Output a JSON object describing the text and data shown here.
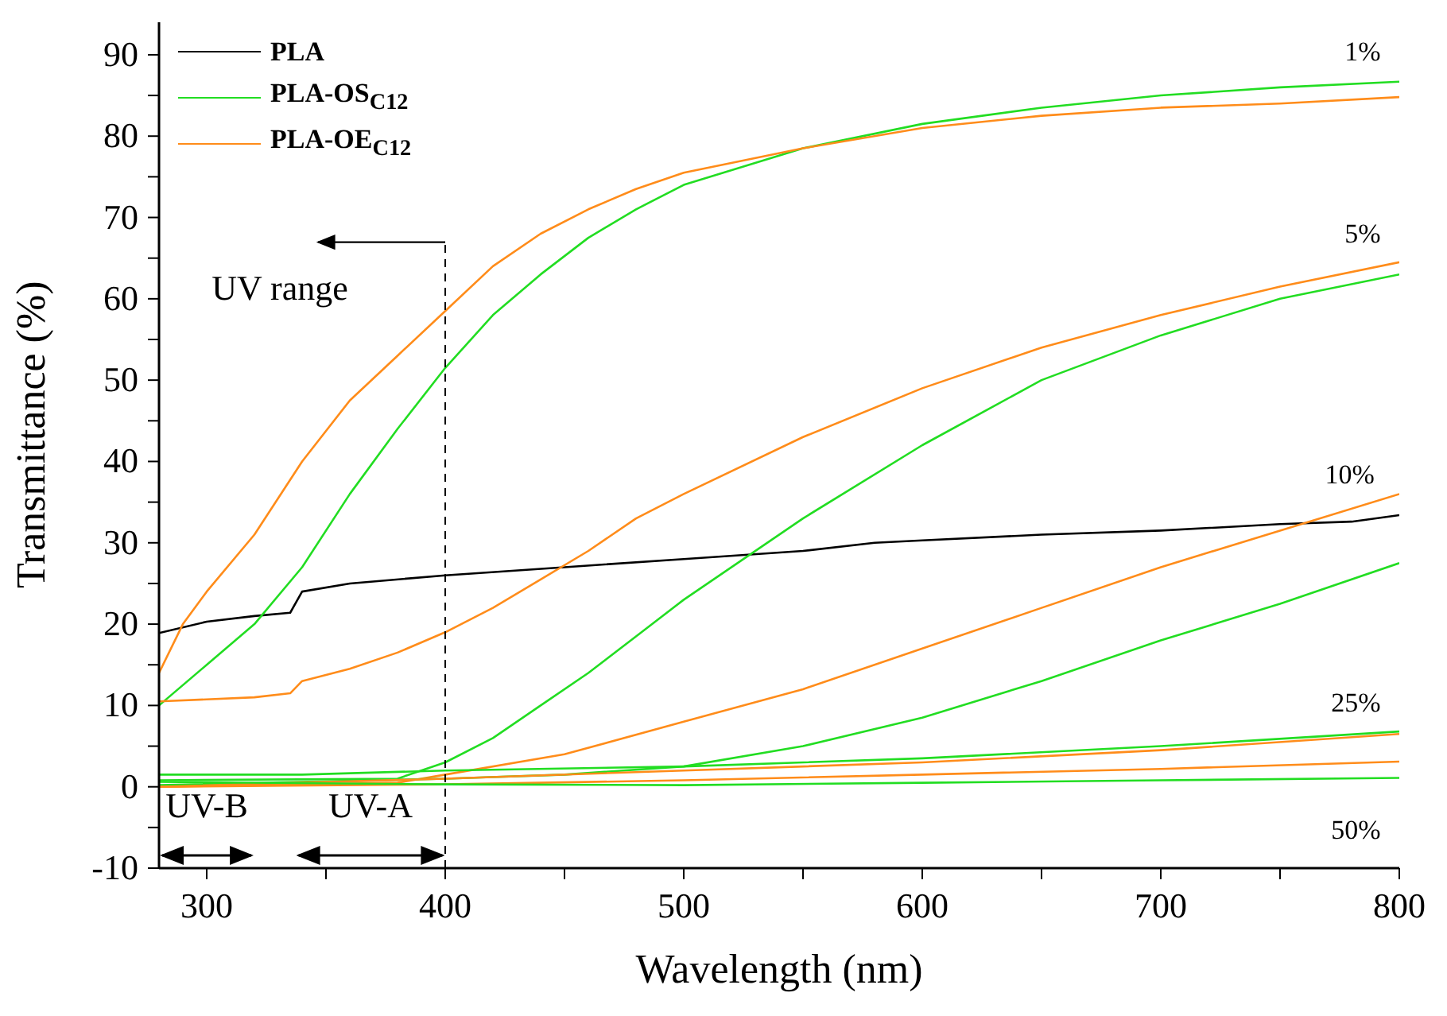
{
  "chart_data": {
    "type": "line",
    "xlabel": "Wavelength (nm)",
    "ylabel": "Transmittance (%)",
    "xlim": [
      280,
      800
    ],
    "ylim": [
      -10,
      94
    ],
    "xticks": [
      300,
      {
        "value": 350,
        "label": null
      },
      400,
      {
        "value": 450,
        "label": null
      },
      500,
      {
        "value": 550,
        "label": null
      },
      600,
      {
        "value": 650,
        "label": null
      },
      700,
      {
        "value": 750,
        "label": null
      },
      800
    ],
    "yticks": [
      -10,
      {
        "value": -5,
        "label": null
      },
      0,
      {
        "value": 5,
        "label": null
      },
      10,
      {
        "value": 15,
        "label": null
      },
      20,
      {
        "value": 25,
        "label": null
      },
      30,
      {
        "value": 35,
        "label": null
      },
      40,
      {
        "value": 45,
        "label": null
      },
      50,
      {
        "value": 55,
        "label": null
      },
      60,
      {
        "value": 65,
        "label": null
      },
      70,
      {
        "value": 75,
        "label": null
      },
      80,
      {
        "value": 85,
        "label": null
      },
      90
    ],
    "legend": "top left",
    "marker": "none",
    "line_style": "solid",
    "series": [
      {
        "name": "PLA",
        "color": "#000000",
        "x": [
          280,
          300,
          320,
          335,
          340,
          360,
          400,
          450,
          500,
          550,
          580,
          600,
          650,
          700,
          750,
          780,
          800
        ],
        "values": [
          18.9,
          20.3,
          21,
          21.4,
          24,
          25,
          26,
          27,
          28,
          29,
          30,
          30.3,
          31,
          31.5,
          32.3,
          32.6,
          33.4
        ]
      },
      {
        "name": "PLA-OS$_{C12}$",
        "color": "#22dd22",
        "x": [
          280,
          300,
          320,
          340,
          360,
          380,
          400,
          420,
          440,
          460,
          480,
          500,
          550,
          600,
          650,
          700,
          750,
          800
        ],
        "values": [
          10,
          15,
          20,
          27,
          36,
          44,
          51.5,
          58,
          63,
          67.5,
          71,
          74,
          78.5,
          81.5,
          83.5,
          85,
          86,
          86.7
        ]
      },
      {
        "name": "PLA-OE$_{C12}$",
        "color": "#ff8c1a",
        "x": [
          280,
          290,
          300,
          320,
          340,
          360,
          380,
          400,
          420,
          440,
          460,
          480,
          500,
          550,
          600,
          650,
          700,
          750,
          800
        ],
        "values": [
          14,
          20,
          24,
          31,
          40,
          47.5,
          53,
          58.5,
          64,
          68,
          71,
          73.5,
          75.5,
          78.5,
          81,
          82.5,
          83.5,
          84,
          84.8
        ]
      },
      {
        "color": "#ff8c1a",
        "x": [
          280,
          320,
          335,
          340,
          360,
          380,
          400,
          420,
          440,
          460,
          480,
          500,
          550,
          600,
          650,
          700,
          750,
          800
        ],
        "values": [
          10.5,
          11,
          11.5,
          13,
          14.5,
          16.5,
          19,
          22,
          25.5,
          29,
          33,
          36,
          43,
          49,
          54,
          58,
          61.5,
          64.5
        ]
      },
      {
        "color": "#22dd22",
        "x": [
          280,
          380,
          400,
          420,
          440,
          460,
          480,
          500,
          550,
          600,
          650,
          700,
          750,
          800
        ],
        "values": [
          0.8,
          1,
          3,
          6,
          10,
          14,
          18.5,
          23,
          33,
          42,
          50,
          55.5,
          60,
          63
        ]
      },
      {
        "color": "#ff8c1a",
        "x": [
          280,
          380,
          400,
          450,
          500,
          550,
          600,
          650,
          700,
          750,
          800
        ],
        "values": [
          0,
          0.5,
          1.5,
          4,
          8,
          12,
          17,
          22,
          27,
          31.5,
          36
        ]
      },
      {
        "color": "#22dd22",
        "x": [
          280,
          400,
          450,
          500,
          550,
          600,
          650,
          700,
          750,
          800
        ],
        "values": [
          0.2,
          1,
          1.5,
          2.5,
          5,
          8.5,
          13,
          18,
          22.5,
          27.5
        ]
      },
      {
        "color": "#22dd22",
        "x": [
          280,
          340,
          400,
          500,
          600,
          700,
          800
        ],
        "values": [
          1.5,
          1.5,
          2,
          2.5,
          3.5,
          5,
          6.8
        ]
      },
      {
        "color": "#ff8c1a",
        "x": [
          280,
          400,
          500,
          600,
          700,
          800
        ],
        "values": [
          0,
          1,
          2,
          3,
          4.5,
          6.5
        ]
      },
      {
        "color": "#ff8c1a",
        "x": [
          280,
          400,
          500,
          600,
          700,
          800
        ],
        "values": [
          0,
          0.3,
          0.8,
          1.5,
          2.2,
          3.1
        ]
      },
      {
        "color": "#22dd22",
        "x": [
          280,
          400,
          500,
          600,
          700,
          800
        ],
        "values": [
          0.6,
          0.3,
          0.2,
          0.5,
          0.8,
          1.1
        ]
      }
    ],
    "ref_lines": [
      {
        "axis": "x",
        "value": 400,
        "label": "UV range",
        "line_style": "dashed",
        "color": "#000000"
      }
    ],
    "annotations": [
      "1%",
      "5%",
      "10%",
      "25%",
      "50%",
      "UV-B",
      "UV-A"
    ]
  }
}
